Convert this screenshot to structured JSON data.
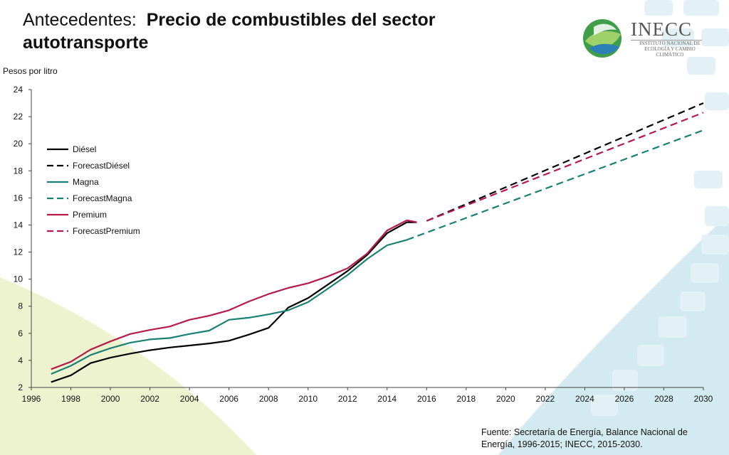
{
  "header": {
    "title_lead": "Antecedentes:",
    "title_main": "Precio de combustibles del sector autotransporte"
  },
  "logo": {
    "name": "INECC",
    "subtitle": "INSTITUTO NACIONAL DE ECOLOGÍA Y CAMBIO CLIMÁTICO"
  },
  "footer": {
    "source": "Fuente: Secretaría de Energía, Balance Nacional de Energía, 1996-2015; INECC, 2015-2030."
  },
  "colors": {
    "diesel": "#000000",
    "magna": "#1a7f74",
    "premium": "#b51a4b",
    "bg_left": "#eef3cf",
    "bg_right": "#d4eaf1"
  },
  "chart_data": {
    "type": "line",
    "title": "",
    "ylabel": "Pesos por litro",
    "xlabel": "",
    "xlim": [
      1996,
      2030
    ],
    "ylim": [
      2,
      24
    ],
    "xticks": [
      1996,
      1998,
      2000,
      2002,
      2004,
      2006,
      2008,
      2010,
      2012,
      2014,
      2016,
      2018,
      2020,
      2022,
      2024,
      2026,
      2028,
      2030
    ],
    "yticks": [
      2,
      4,
      6,
      8,
      10,
      12,
      14,
      16,
      18,
      20,
      22,
      24
    ],
    "grid": false,
    "legend_position": "upper-left",
    "series": [
      {
        "name": "Diésel",
        "style": "solid",
        "color": "#000000",
        "points": [
          [
            1997,
            2.4
          ],
          [
            1998,
            2.9
          ],
          [
            1999,
            3.8
          ],
          [
            2000,
            4.2
          ],
          [
            2001,
            4.5
          ],
          [
            2002,
            4.75
          ],
          [
            2003,
            4.95
          ],
          [
            2004,
            5.1
          ],
          [
            2005,
            5.25
          ],
          [
            2006,
            5.45
          ],
          [
            2007,
            5.9
          ],
          [
            2008,
            6.4
          ],
          [
            2009,
            7.9
          ],
          [
            2010,
            8.6
          ],
          [
            2011,
            9.6
          ],
          [
            2012,
            10.6
          ],
          [
            2013,
            11.8
          ],
          [
            2014,
            13.4
          ],
          [
            2015,
            14.2
          ],
          [
            2015.5,
            14.2
          ]
        ]
      },
      {
        "name": "ForecastDiésel",
        "style": "dashed",
        "color": "#000000",
        "points": [
          [
            2016,
            14.3
          ],
          [
            2030,
            23.0
          ]
        ]
      },
      {
        "name": "Magna",
        "style": "solid",
        "color": "#1a7f74",
        "points": [
          [
            1997,
            3.0
          ],
          [
            1998,
            3.6
          ],
          [
            1999,
            4.4
          ],
          [
            2000,
            4.9
          ],
          [
            2001,
            5.3
          ],
          [
            2002,
            5.55
          ],
          [
            2003,
            5.65
          ],
          [
            2004,
            5.95
          ],
          [
            2005,
            6.2
          ],
          [
            2006,
            7.0
          ],
          [
            2007,
            7.15
          ],
          [
            2008,
            7.4
          ],
          [
            2009,
            7.7
          ],
          [
            2010,
            8.3
          ],
          [
            2011,
            9.3
          ],
          [
            2012,
            10.3
          ],
          [
            2013,
            11.5
          ],
          [
            2014,
            12.5
          ],
          [
            2015,
            12.9
          ]
        ]
      },
      {
        "name": "ForecastMagna",
        "style": "dashed",
        "color": "#1a7f74",
        "points": [
          [
            2015,
            12.9
          ],
          [
            2030,
            21.0
          ]
        ]
      },
      {
        "name": "Premium",
        "style": "solid",
        "color": "#b51a4b",
        "points": [
          [
            1997,
            3.35
          ],
          [
            1998,
            3.9
          ],
          [
            1999,
            4.8
          ],
          [
            2000,
            5.4
          ],
          [
            2001,
            5.95
          ],
          [
            2002,
            6.25
          ],
          [
            2003,
            6.5
          ],
          [
            2004,
            7.0
          ],
          [
            2005,
            7.3
          ],
          [
            2006,
            7.7
          ],
          [
            2007,
            8.35
          ],
          [
            2008,
            8.9
          ],
          [
            2009,
            9.35
          ],
          [
            2010,
            9.7
          ],
          [
            2011,
            10.2
          ],
          [
            2012,
            10.8
          ],
          [
            2013,
            11.9
          ],
          [
            2014,
            13.6
          ],
          [
            2015,
            14.35
          ],
          [
            2015.5,
            14.2
          ]
        ]
      },
      {
        "name": "ForecastPremium",
        "style": "dashed",
        "color": "#b51a4b",
        "points": [
          [
            2016,
            14.3
          ],
          [
            2030,
            22.3
          ]
        ]
      }
    ]
  }
}
